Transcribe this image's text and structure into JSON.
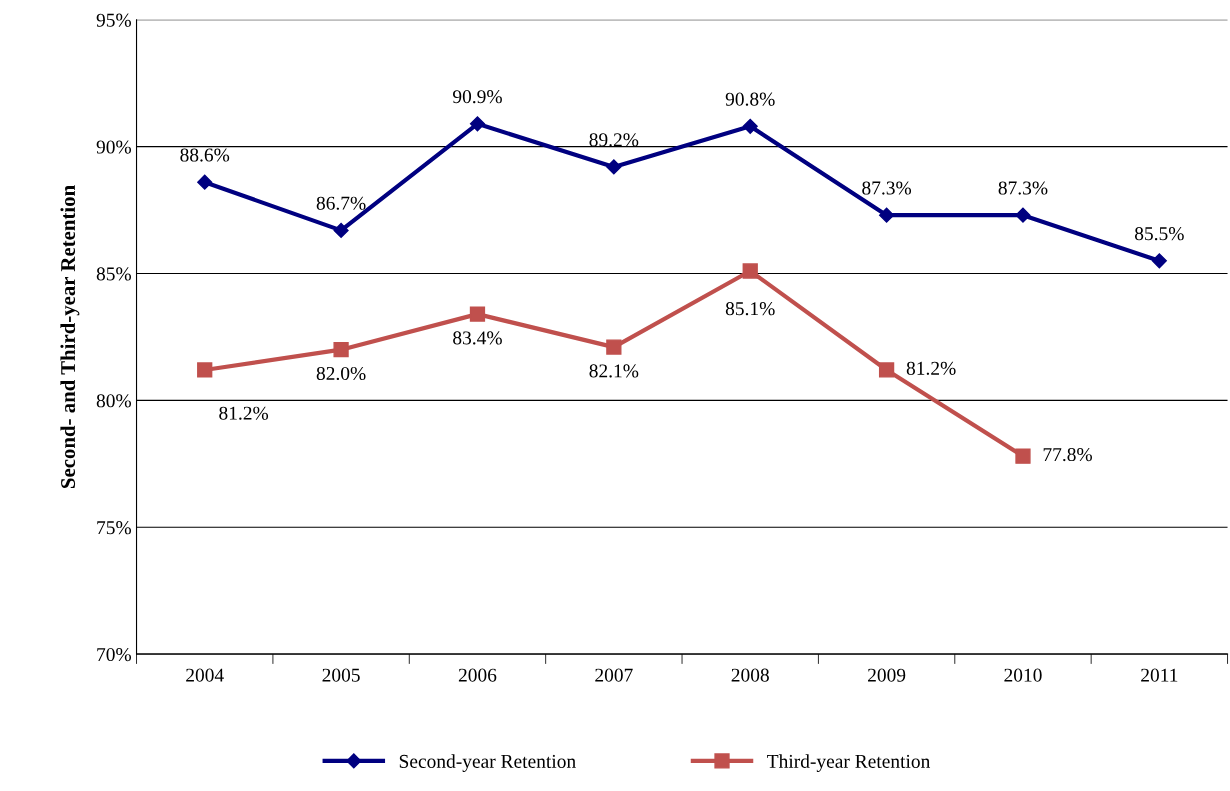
{
  "chart_data": {
    "type": "line",
    "ylabel": "Second- and Third-year Retention",
    "categories": [
      "2004",
      "2005",
      "2006",
      "2007",
      "2008",
      "2009",
      "2010",
      "2011"
    ],
    "series": [
      {
        "name": "Second-year Retention",
        "color": "#000080",
        "marker": "diamond",
        "values": [
          88.6,
          86.7,
          90.9,
          89.2,
          90.8,
          87.3,
          87.3,
          85.5
        ],
        "value_labels": [
          "88.6%",
          "86.7%",
          "90.9%",
          "89.2%",
          "90.8%",
          "87.3%",
          "87.3%",
          "85.5%"
        ]
      },
      {
        "name": "Third-year Retention",
        "color": "#c0504d",
        "marker": "square",
        "values": [
          81.2,
          82.0,
          83.4,
          82.1,
          85.1,
          81.2,
          77.8,
          null
        ],
        "value_labels": [
          "81.2%",
          "82.0%",
          "83.4%",
          "82.1%",
          "85.1%",
          "81.2%",
          "77.8%",
          null
        ]
      }
    ],
    "ylim": [
      70,
      95
    ],
    "yticks": [
      {
        "value": 70,
        "label": "70%"
      },
      {
        "value": 75,
        "label": "75%"
      },
      {
        "value": 80,
        "label": "80%"
      },
      {
        "value": 85,
        "label": "85%"
      },
      {
        "value": 90,
        "label": "90%"
      },
      {
        "value": 95,
        "label": "95%"
      }
    ],
    "grid": "y",
    "legend": "bottom",
    "line_style": "solid"
  }
}
